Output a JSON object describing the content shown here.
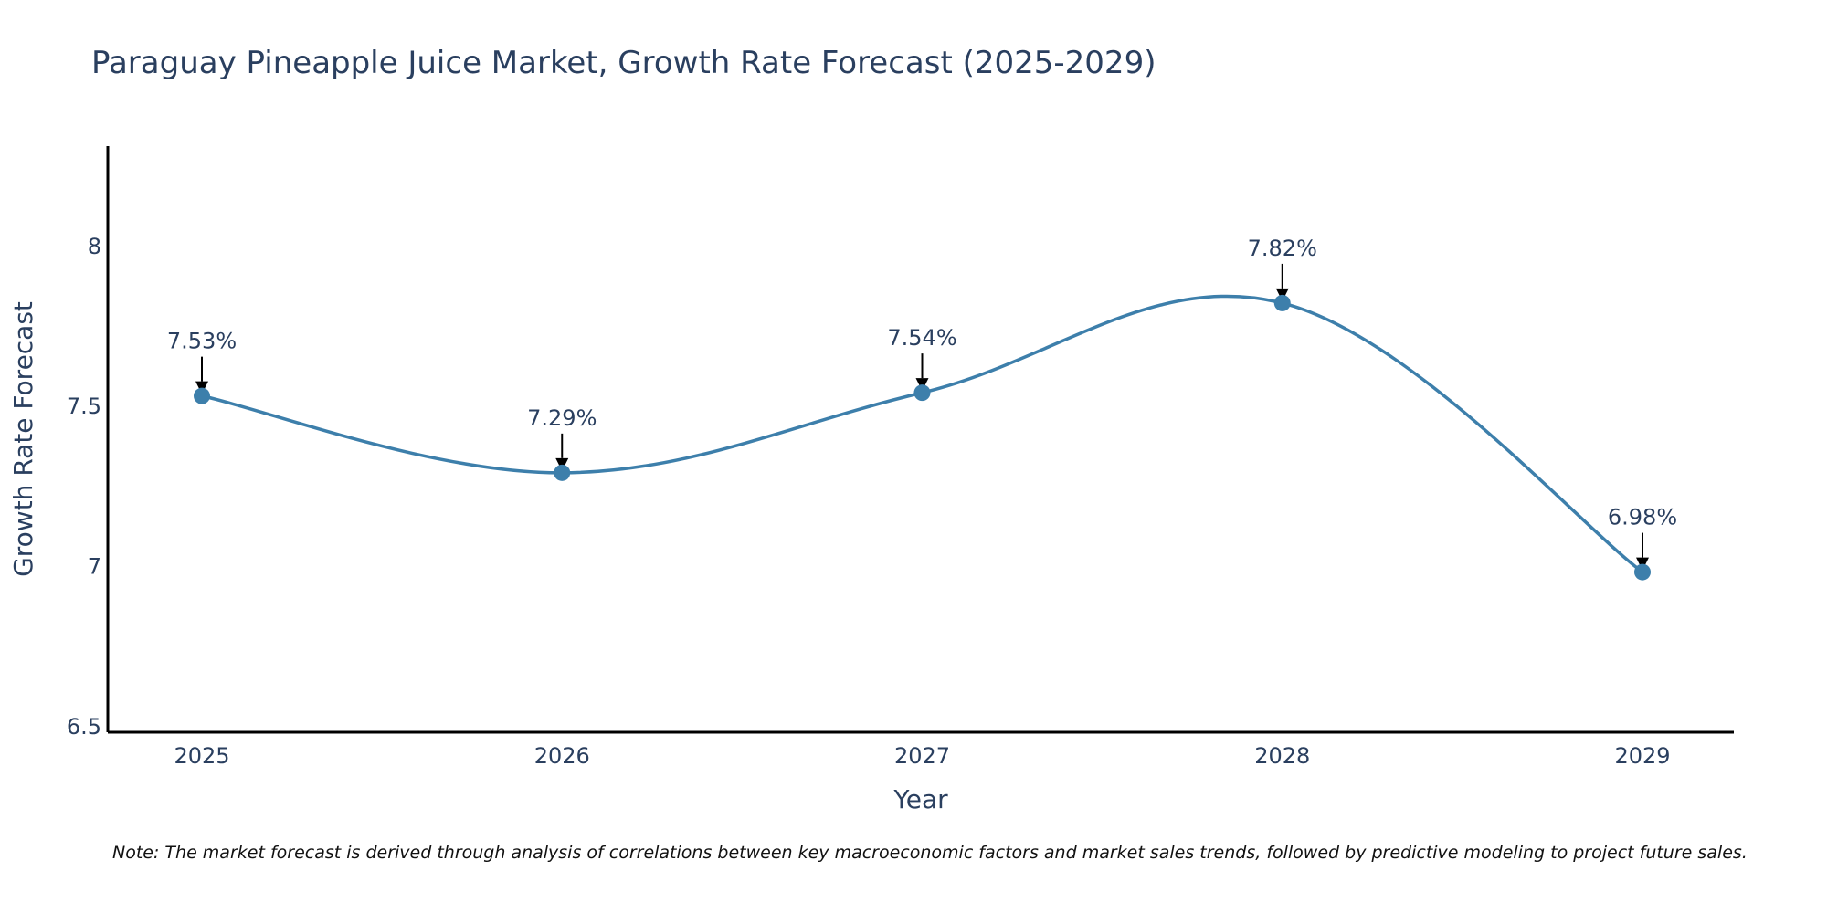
{
  "chart_data": {
    "type": "line",
    "title": "Paraguay Pineapple Juice Market, Growth Rate Forecast (2025-2029)",
    "xlabel": "Year",
    "ylabel": "Growth Rate Forecast",
    "categories": [
      "2025",
      "2026",
      "2027",
      "2028",
      "2029"
    ],
    "series": [
      {
        "name": "Growth Rate Forecast",
        "values": [
          7.53,
          7.29,
          7.54,
          7.82,
          6.98
        ],
        "labels": [
          "7.53%",
          "7.29%",
          "7.54%",
          "7.82%",
          "6.98%"
        ]
      }
    ],
    "ylim": [
      6.48,
      8.31
    ],
    "yticks": [
      6.5,
      7,
      7.5,
      8
    ],
    "ytick_labels": [
      "6.5",
      "7",
      "7.5",
      "8"
    ],
    "grid": false,
    "line_shape": "spline",
    "colors": {
      "line": "#3d7fab",
      "marker": "#3d7fab",
      "axis": "#000000",
      "text": "#2a3f5f",
      "arrow": "#000000"
    },
    "note": "Note: The market forecast is derived through analysis of correlations between key macroeconomic factors and market sales trends, followed by predictive modeling to project future sales."
  }
}
